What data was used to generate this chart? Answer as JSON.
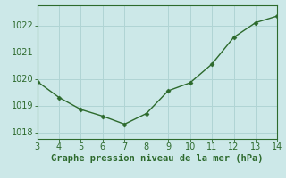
{
  "x": [
    3,
    4,
    5,
    6,
    7,
    8,
    9,
    10,
    11,
    12,
    13,
    14
  ],
  "y": [
    1019.9,
    1019.3,
    1018.85,
    1018.6,
    1018.3,
    1018.7,
    1019.55,
    1019.85,
    1020.55,
    1021.55,
    1022.1,
    1022.35
  ],
  "line_color": "#2d6a2d",
  "marker": "D",
  "marker_size": 2.5,
  "line_width": 1.0,
  "xlabel": "Graphe pression niveau de la mer (hPa)",
  "xlim": [
    3,
    14
  ],
  "ylim": [
    1017.75,
    1022.75
  ],
  "xticks": [
    3,
    4,
    5,
    6,
    7,
    8,
    9,
    10,
    11,
    12,
    13,
    14
  ],
  "yticks": [
    1018,
    1019,
    1020,
    1021,
    1022
  ],
  "background_color": "#cce8e8",
  "grid_color": "#b0d4d4",
  "tick_color": "#2d6a2d",
  "label_color": "#2d6a2d",
  "label_fontsize": 7.5,
  "tick_fontsize": 7.0
}
